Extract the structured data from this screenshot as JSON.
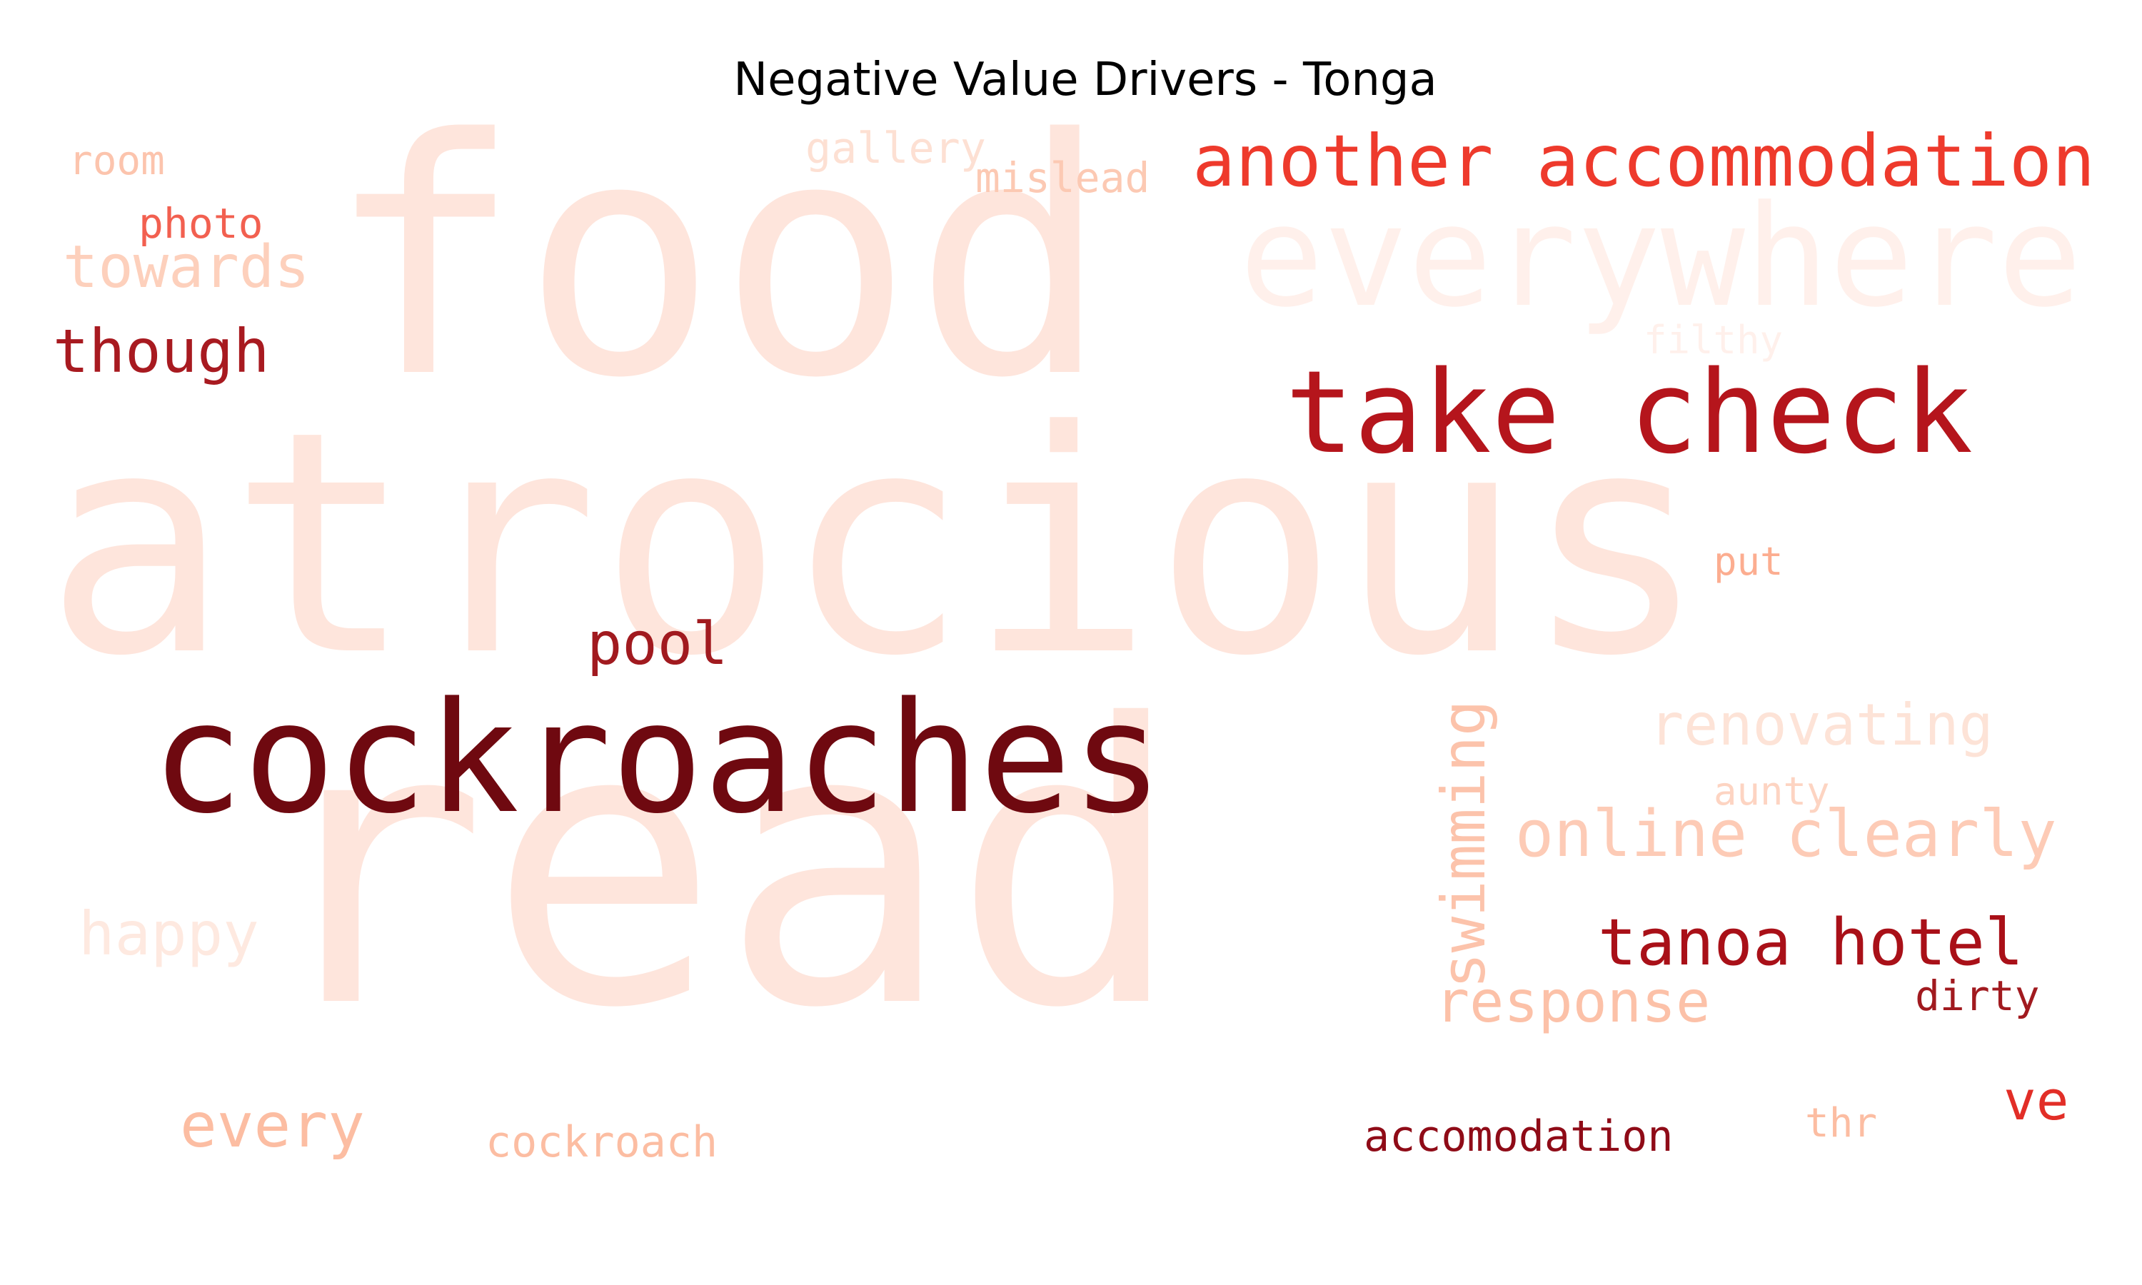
{
  "title": "Negative Value Drivers - Tonga",
  "words": [
    {
      "text": "atrocious",
      "color": "#fee5dc",
      "rank": 1
    },
    {
      "text": "read",
      "color": "#fee5dc",
      "rank": 2
    },
    {
      "text": "food",
      "color": "#fee5dc",
      "rank": 3
    },
    {
      "text": "cockroaches",
      "color": "#6f0910",
      "rank": 4
    },
    {
      "text": "take check",
      "color": "#b5151c",
      "rank": 5
    },
    {
      "text": "everywhere",
      "color": "#fff0eb",
      "rank": 6
    },
    {
      "text": "another accommodation",
      "color": "#ee3a2c",
      "rank": 7
    },
    {
      "text": "tanoa hotel",
      "color": "#a91018",
      "rank": 8
    },
    {
      "text": "online clearly",
      "color": "#fdcbb6",
      "rank": 9
    },
    {
      "text": "swimming",
      "color": "#fcc3ab",
      "rank": 10
    },
    {
      "text": "renovating",
      "color": "#fde3d7",
      "rank": 11
    },
    {
      "text": "response",
      "color": "#fcc1a8",
      "rank": 12
    },
    {
      "text": "pool",
      "color": "#a11a1f",
      "rank": 13
    },
    {
      "text": "though",
      "color": "#a81a20",
      "rank": 14
    },
    {
      "text": "towards",
      "color": "#fdd0bc",
      "rank": 15
    },
    {
      "text": "happy",
      "color": "#fee9e0",
      "rank": 16
    },
    {
      "text": "every",
      "color": "#fcbda2",
      "rank": 17
    },
    {
      "text": "ve",
      "color": "#e22e27",
      "rank": 18
    },
    {
      "text": "accomodation",
      "color": "#8f0b17",
      "rank": 19
    },
    {
      "text": "cockroach",
      "color": "#fcbda2",
      "rank": 20
    },
    {
      "text": "dirty",
      "color": "#a11a1f",
      "rank": 21
    },
    {
      "text": "photo",
      "color": "#f26050",
      "rank": 22
    },
    {
      "text": "room",
      "color": "#fcc4ad",
      "rank": 23
    },
    {
      "text": "gallery",
      "color": "#fde0d3",
      "rank": 24
    },
    {
      "text": "mislead",
      "color": "#fcc9b3",
      "rank": 25
    },
    {
      "text": "filthy",
      "color": "#fff0eb",
      "rank": 26
    },
    {
      "text": "put",
      "color": "#fcad90",
      "rank": 27
    },
    {
      "text": "aunty",
      "color": "#fdd4c2",
      "rank": 28
    },
    {
      "text": "thr",
      "color": "#fcbda2",
      "rank": 29
    }
  ]
}
